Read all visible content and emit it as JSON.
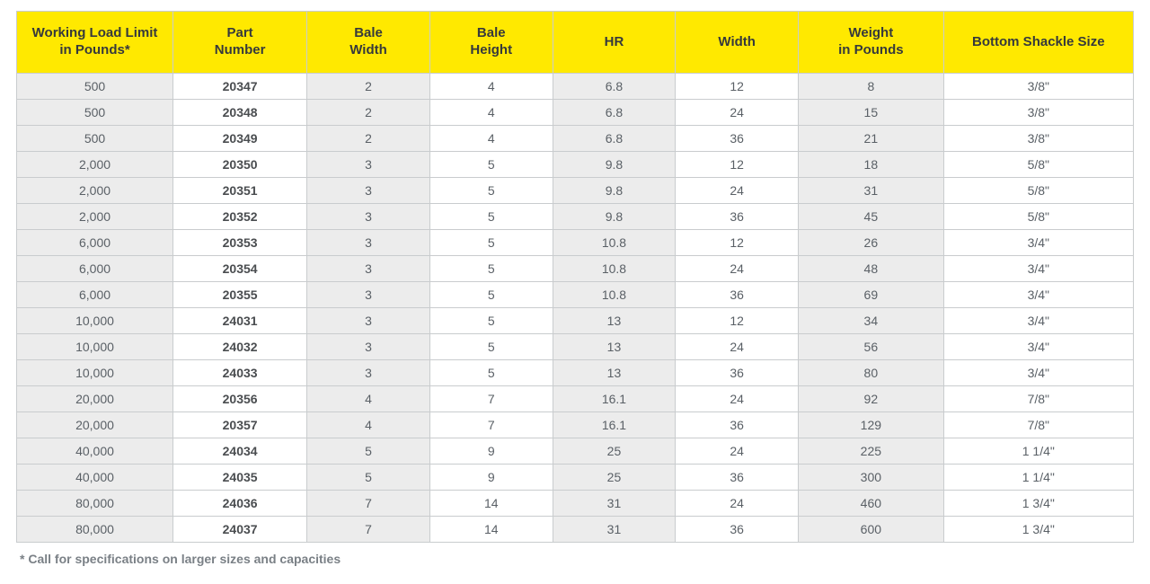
{
  "table": {
    "header_bg": "#ffe900",
    "header_text_color": "#36393c",
    "border_color": "#c9ccce",
    "row_bg": "#ffffff",
    "shaded_bg": "#ececec",
    "text_color": "#5a6066",
    "bold_text_color": "#4a4d50",
    "font_family": "Arial, Helvetica, sans-serif",
    "header_font_size_pt": 11,
    "cell_font_size_pt": 10,
    "columns": [
      {
        "key": "wll",
        "label_line1": "Working Load Limit",
        "label_line2": "in Pounds*",
        "width_pct": 14,
        "shaded": true,
        "bold": false
      },
      {
        "key": "part",
        "label_line1": "Part",
        "label_line2": "Number",
        "width_pct": 12,
        "shaded": false,
        "bold": true
      },
      {
        "key": "bale_w",
        "label_line1": "Bale",
        "label_line2": "Width",
        "width_pct": 11,
        "shaded": true,
        "bold": false
      },
      {
        "key": "bale_h",
        "label_line1": "Bale",
        "label_line2": "Height",
        "width_pct": 11,
        "shaded": false,
        "bold": false
      },
      {
        "key": "hr",
        "label_line1": "HR",
        "label_line2": "",
        "width_pct": 11,
        "shaded": true,
        "bold": false
      },
      {
        "key": "width",
        "label_line1": "Width",
        "label_line2": "",
        "width_pct": 11,
        "shaded": false,
        "bold": false
      },
      {
        "key": "weight",
        "label_line1": "Weight",
        "label_line2": "in Pounds",
        "width_pct": 13,
        "shaded": true,
        "bold": false
      },
      {
        "key": "shackle",
        "label_line1": "Bottom Shackle Size",
        "label_line2": "",
        "width_pct": 17,
        "shaded": false,
        "bold": false
      }
    ],
    "rows": [
      {
        "wll": "500",
        "part": "20347",
        "bale_w": "2",
        "bale_h": "4",
        "hr": "6.8",
        "width": "12",
        "weight": "8",
        "shackle": "3/8\""
      },
      {
        "wll": "500",
        "part": "20348",
        "bale_w": "2",
        "bale_h": "4",
        "hr": "6.8",
        "width": "24",
        "weight": "15",
        "shackle": "3/8\""
      },
      {
        "wll": "500",
        "part": "20349",
        "bale_w": "2",
        "bale_h": "4",
        "hr": "6.8",
        "width": "36",
        "weight": "21",
        "shackle": "3/8\""
      },
      {
        "wll": "2,000",
        "part": "20350",
        "bale_w": "3",
        "bale_h": "5",
        "hr": "9.8",
        "width": "12",
        "weight": "18",
        "shackle": "5/8\""
      },
      {
        "wll": "2,000",
        "part": "20351",
        "bale_w": "3",
        "bale_h": "5",
        "hr": "9.8",
        "width": "24",
        "weight": "31",
        "shackle": "5/8\""
      },
      {
        "wll": "2,000",
        "part": "20352",
        "bale_w": "3",
        "bale_h": "5",
        "hr": "9.8",
        "width": "36",
        "weight": "45",
        "shackle": "5/8\""
      },
      {
        "wll": "6,000",
        "part": "20353",
        "bale_w": "3",
        "bale_h": "5",
        "hr": "10.8",
        "width": "12",
        "weight": "26",
        "shackle": "3/4\""
      },
      {
        "wll": "6,000",
        "part": "20354",
        "bale_w": "3",
        "bale_h": "5",
        "hr": "10.8",
        "width": "24",
        "weight": "48",
        "shackle": "3/4\""
      },
      {
        "wll": "6,000",
        "part": "20355",
        "bale_w": "3",
        "bale_h": "5",
        "hr": "10.8",
        "width": "36",
        "weight": "69",
        "shackle": "3/4\""
      },
      {
        "wll": "10,000",
        "part": "24031",
        "bale_w": "3",
        "bale_h": "5",
        "hr": "13",
        "width": "12",
        "weight": "34",
        "shackle": "3/4\""
      },
      {
        "wll": "10,000",
        "part": "24032",
        "bale_w": "3",
        "bale_h": "5",
        "hr": "13",
        "width": "24",
        "weight": "56",
        "shackle": "3/4\""
      },
      {
        "wll": "10,000",
        "part": "24033",
        "bale_w": "3",
        "bale_h": "5",
        "hr": "13",
        "width": "36",
        "weight": "80",
        "shackle": "3/4\""
      },
      {
        "wll": "20,000",
        "part": "20356",
        "bale_w": "4",
        "bale_h": "7",
        "hr": "16.1",
        "width": "24",
        "weight": "92",
        "shackle": "7/8\""
      },
      {
        "wll": "20,000",
        "part": "20357",
        "bale_w": "4",
        "bale_h": "7",
        "hr": "16.1",
        "width": "36",
        "weight": "129",
        "shackle": "7/8\""
      },
      {
        "wll": "40,000",
        "part": "24034",
        "bale_w": "5",
        "bale_h": "9",
        "hr": "25",
        "width": "24",
        "weight": "225",
        "shackle": "1 1/4\""
      },
      {
        "wll": "40,000",
        "part": "24035",
        "bale_w": "5",
        "bale_h": "9",
        "hr": "25",
        "width": "36",
        "weight": "300",
        "shackle": "1 1/4\""
      },
      {
        "wll": "80,000",
        "part": "24036",
        "bale_w": "7",
        "bale_h": "14",
        "hr": "31",
        "width": "24",
        "weight": "460",
        "shackle": "1 3/4\""
      },
      {
        "wll": "80,000",
        "part": "24037",
        "bale_w": "7",
        "bale_h": "14",
        "hr": "31",
        "width": "36",
        "weight": "600",
        "shackle": "1 3/4\""
      }
    ]
  },
  "footnote": "* Call for specifications on larger sizes and capacities"
}
